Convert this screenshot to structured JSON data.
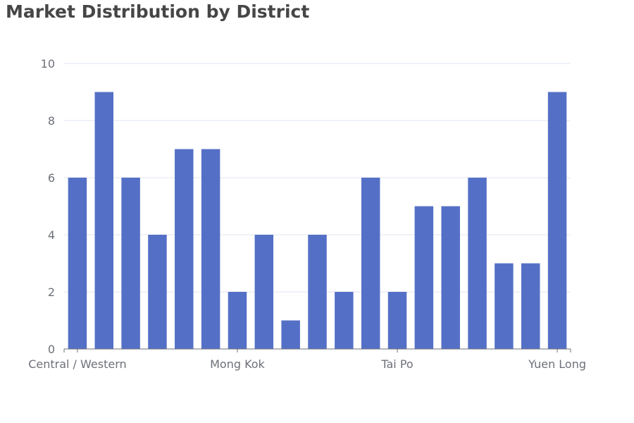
{
  "chart_data": {
    "type": "bar",
    "title": "Market Distribution by District",
    "xlabel": "",
    "ylabel": "",
    "ylim": [
      0,
      10
    ],
    "y_ticks": [
      0,
      2,
      4,
      6,
      8,
      10
    ],
    "categories": [
      "Central / Western",
      "",
      "",
      "",
      "",
      "",
      "Mong Kok",
      "",
      "",
      "",
      "",
      "",
      "Tai Po",
      "",
      "",
      "",
      "",
      "",
      "Yuen Long"
    ],
    "values": [
      6,
      9,
      6,
      4,
      7,
      7,
      2,
      4,
      1,
      4,
      2,
      6,
      2,
      5,
      5,
      6,
      3,
      3,
      9
    ],
    "x_tick_labels": [
      {
        "index": 0,
        "label": "Central / Western"
      },
      {
        "index": 6,
        "label": "Mong Kok"
      },
      {
        "index": 12,
        "label": "Tai Po"
      },
      {
        "index": 18,
        "label": "Yuen Long"
      }
    ],
    "grid": true,
    "colors": {
      "bar": "#5470c6",
      "grid": "#e0e6f1",
      "axis": "#6e7079"
    }
  }
}
